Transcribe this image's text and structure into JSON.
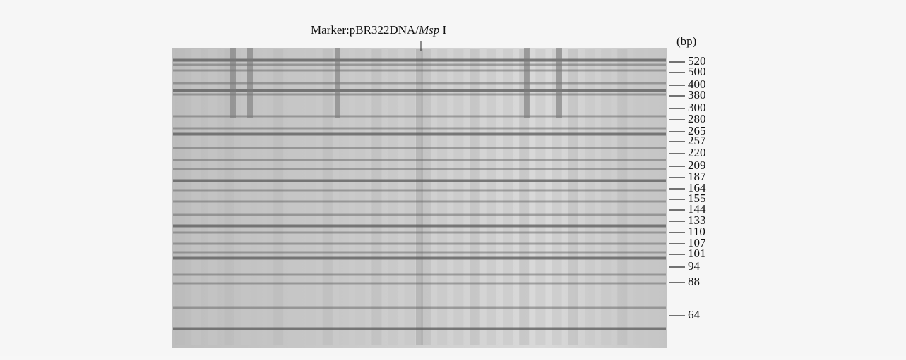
{
  "figure": {
    "title": {
      "prefix": "Marker:pBR322DNA/",
      "italic": "Msp",
      "suffix": " I"
    },
    "unit": "(bp)",
    "marker_sizes": [
      520,
      500,
      400,
      380,
      300,
      280,
      265,
      257,
      220,
      209,
      187,
      164,
      155,
      144,
      133,
      110,
      107,
      101,
      94,
      88,
      64
    ]
  }
}
